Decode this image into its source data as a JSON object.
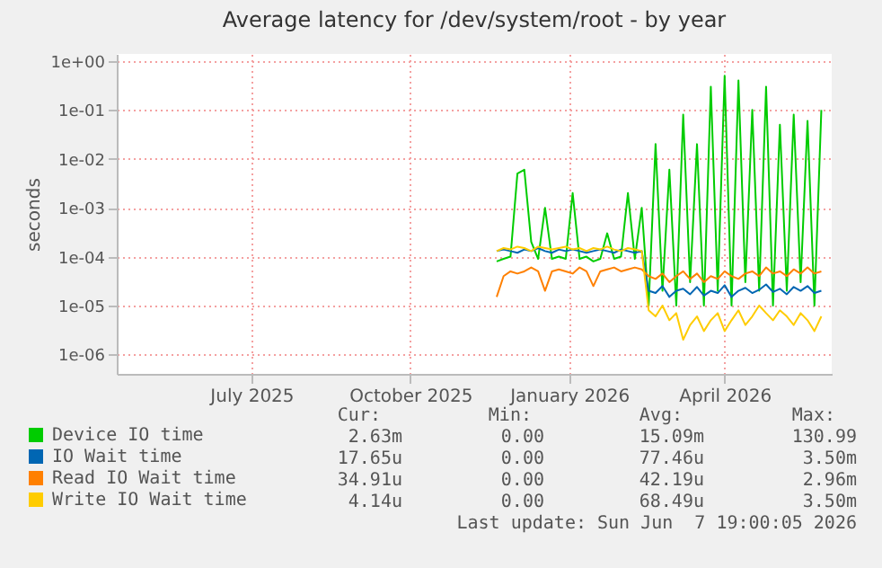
{
  "chart_data": {
    "type": "line",
    "title": "Average latency for /dev/system/root - by year",
    "ylabel": "seconds",
    "log": "y",
    "grid": true,
    "legend": "bottom",
    "marker": "none",
    "line_style": "solid",
    "x": [
      "2025-11-20",
      "2025-11-24",
      "2025-11-28",
      "2025-12-02",
      "2025-12-06",
      "2025-12-10",
      "2025-12-14",
      "2025-12-18",
      "2025-12-22",
      "2025-12-26",
      "2025-12-30",
      "2026-01-03",
      "2026-01-07",
      "2026-01-11",
      "2026-01-15",
      "2026-01-19",
      "2026-01-23",
      "2026-01-27",
      "2026-01-31",
      "2026-02-04",
      "2026-02-08",
      "2026-02-12",
      "2026-02-16",
      "2026-02-20",
      "2026-02-24",
      "2026-02-28",
      "2026-03-04",
      "2026-03-08",
      "2026-03-12",
      "2026-03-16",
      "2026-03-20",
      "2026-03-24",
      "2026-03-28",
      "2026-04-01",
      "2026-04-05",
      "2026-04-09",
      "2026-04-13",
      "2026-04-17",
      "2026-04-21",
      "2026-04-25",
      "2026-04-29",
      "2026-05-03",
      "2026-05-07",
      "2026-05-11",
      "2026-05-15",
      "2026-05-19",
      "2026-05-23",
      "2026-05-27"
    ],
    "xlim": [
      "2025-04-14",
      "2026-06-02"
    ],
    "xticks": [
      {
        "value": "2025-07-01",
        "label": "July 2025"
      },
      {
        "value": "2025-10-01",
        "label": "October 2025"
      },
      {
        "value": "2026-01-01",
        "label": "January 2026"
      },
      {
        "value": "2026-04-01",
        "label": "April 2026"
      }
    ],
    "ylim": [
      4e-07,
      1.4
    ],
    "yticks": [
      {
        "value": 1e-06,
        "label": "1e-06"
      },
      {
        "value": 1e-05,
        "label": "1e-05"
      },
      {
        "value": 0.0001,
        "label": "1e-04"
      },
      {
        "value": 0.001,
        "label": "1e-03"
      },
      {
        "value": 0.01,
        "label": "1e-02"
      },
      {
        "value": 0.1,
        "label": "1e-01"
      },
      {
        "value": 1,
        "label": "1e+00"
      }
    ],
    "series": [
      {
        "name": "Device IO time",
        "color": "#00cc00",
        "values": [
          8e-05,
          9e-05,
          0.0001,
          0.005,
          0.006,
          0.0002,
          9e-05,
          0.001,
          9e-05,
          0.0001,
          9e-05,
          0.002,
          9e-05,
          0.0001,
          8e-05,
          9e-05,
          0.0003,
          9e-05,
          0.0001,
          0.002,
          9e-05,
          0.001,
          1e-05,
          0.02,
          2e-05,
          0.006,
          1e-05,
          0.08,
          3e-05,
          0.02,
          1e-05,
          0.3,
          2e-05,
          0.5,
          1e-05,
          0.4,
          3e-05,
          0.1,
          2e-05,
          0.3,
          1e-05,
          0.05,
          2e-05,
          0.08,
          3e-05,
          0.06,
          1e-05,
          0.1
        ]
      },
      {
        "name": "IO Wait time",
        "color": "#0066b3",
        "values": [
          0.00013,
          0.00014,
          0.00013,
          0.00012,
          0.00014,
          0.00013,
          0.00015,
          0.00013,
          0.00012,
          0.00014,
          0.00013,
          0.00014,
          0.00013,
          0.00012,
          0.00013,
          0.00014,
          0.00013,
          0.00012,
          0.00014,
          0.00013,
          0.00012,
          0.00013,
          2e-05,
          1.8e-05,
          2.5e-05,
          1.5e-05,
          2e-05,
          2.2e-05,
          1.7e-05,
          2.4e-05,
          1.6e-05,
          2e-05,
          1.8e-05,
          2.6e-05,
          1.5e-05,
          2e-05,
          2.3e-05,
          1.8e-05,
          2.1e-05,
          2.7e-05,
          1.9e-05,
          2.2e-05,
          1.7e-05,
          2.4e-05,
          2e-05,
          2.5e-05,
          1.8e-05,
          2e-05
        ]
      },
      {
        "name": "Read IO Wait time",
        "color": "#ff8000",
        "values": [
          1.5e-05,
          4e-05,
          5e-05,
          4.5e-05,
          5e-05,
          6e-05,
          5e-05,
          2e-05,
          5e-05,
          5.5e-05,
          5e-05,
          4.5e-05,
          6e-05,
          5e-05,
          2.5e-05,
          5e-05,
          5.5e-05,
          6e-05,
          5e-05,
          5.5e-05,
          6e-05,
          5.5e-05,
          4e-05,
          3.5e-05,
          4.5e-05,
          3e-05,
          4e-05,
          5e-05,
          3.5e-05,
          4.5e-05,
          3e-05,
          4e-05,
          3.5e-05,
          5e-05,
          4e-05,
          3.5e-05,
          4.5e-05,
          5e-05,
          4e-05,
          6e-05,
          4.5e-05,
          5e-05,
          4e-05,
          5.5e-05,
          4.5e-05,
          6e-05,
          4.5e-05,
          5e-05
        ]
      },
      {
        "name": "Write IO Wait time",
        "color": "#ffcc00",
        "values": [
          0.00013,
          0.00015,
          0.00014,
          0.00016,
          0.00015,
          0.00013,
          0.00016,
          0.00015,
          0.00014,
          0.00015,
          0.00016,
          0.00014,
          0.00015,
          0.00013,
          0.00015,
          0.00014,
          0.00016,
          0.00014,
          0.00013,
          0.00015,
          0.00014,
          0.00013,
          8e-06,
          6e-06,
          1e-05,
          5e-06,
          7e-06,
          2e-06,
          4e-06,
          6e-06,
          3e-06,
          5e-06,
          7e-06,
          3e-06,
          5e-06,
          8e-06,
          4e-06,
          6e-06,
          1e-05,
          7e-06,
          5e-06,
          8e-06,
          6e-06,
          4e-06,
          7e-06,
          5e-06,
          3e-06,
          6e-06
        ]
      }
    ],
    "annotations": [
      "Cur:",
      "Min:",
      "Avg:",
      "Max:",
      "2.63m",
      "0.00",
      "15.09m",
      "130.99",
      "17.65u",
      "0.00",
      "77.46u",
      "3.50m",
      "34.91u",
      "0.00",
      "42.19u",
      "2.96m",
      "4.14u",
      "0.00",
      "68.49u",
      "3.50m",
      "Last update: Sun Jun  7 19:00:05 2026"
    ]
  }
}
